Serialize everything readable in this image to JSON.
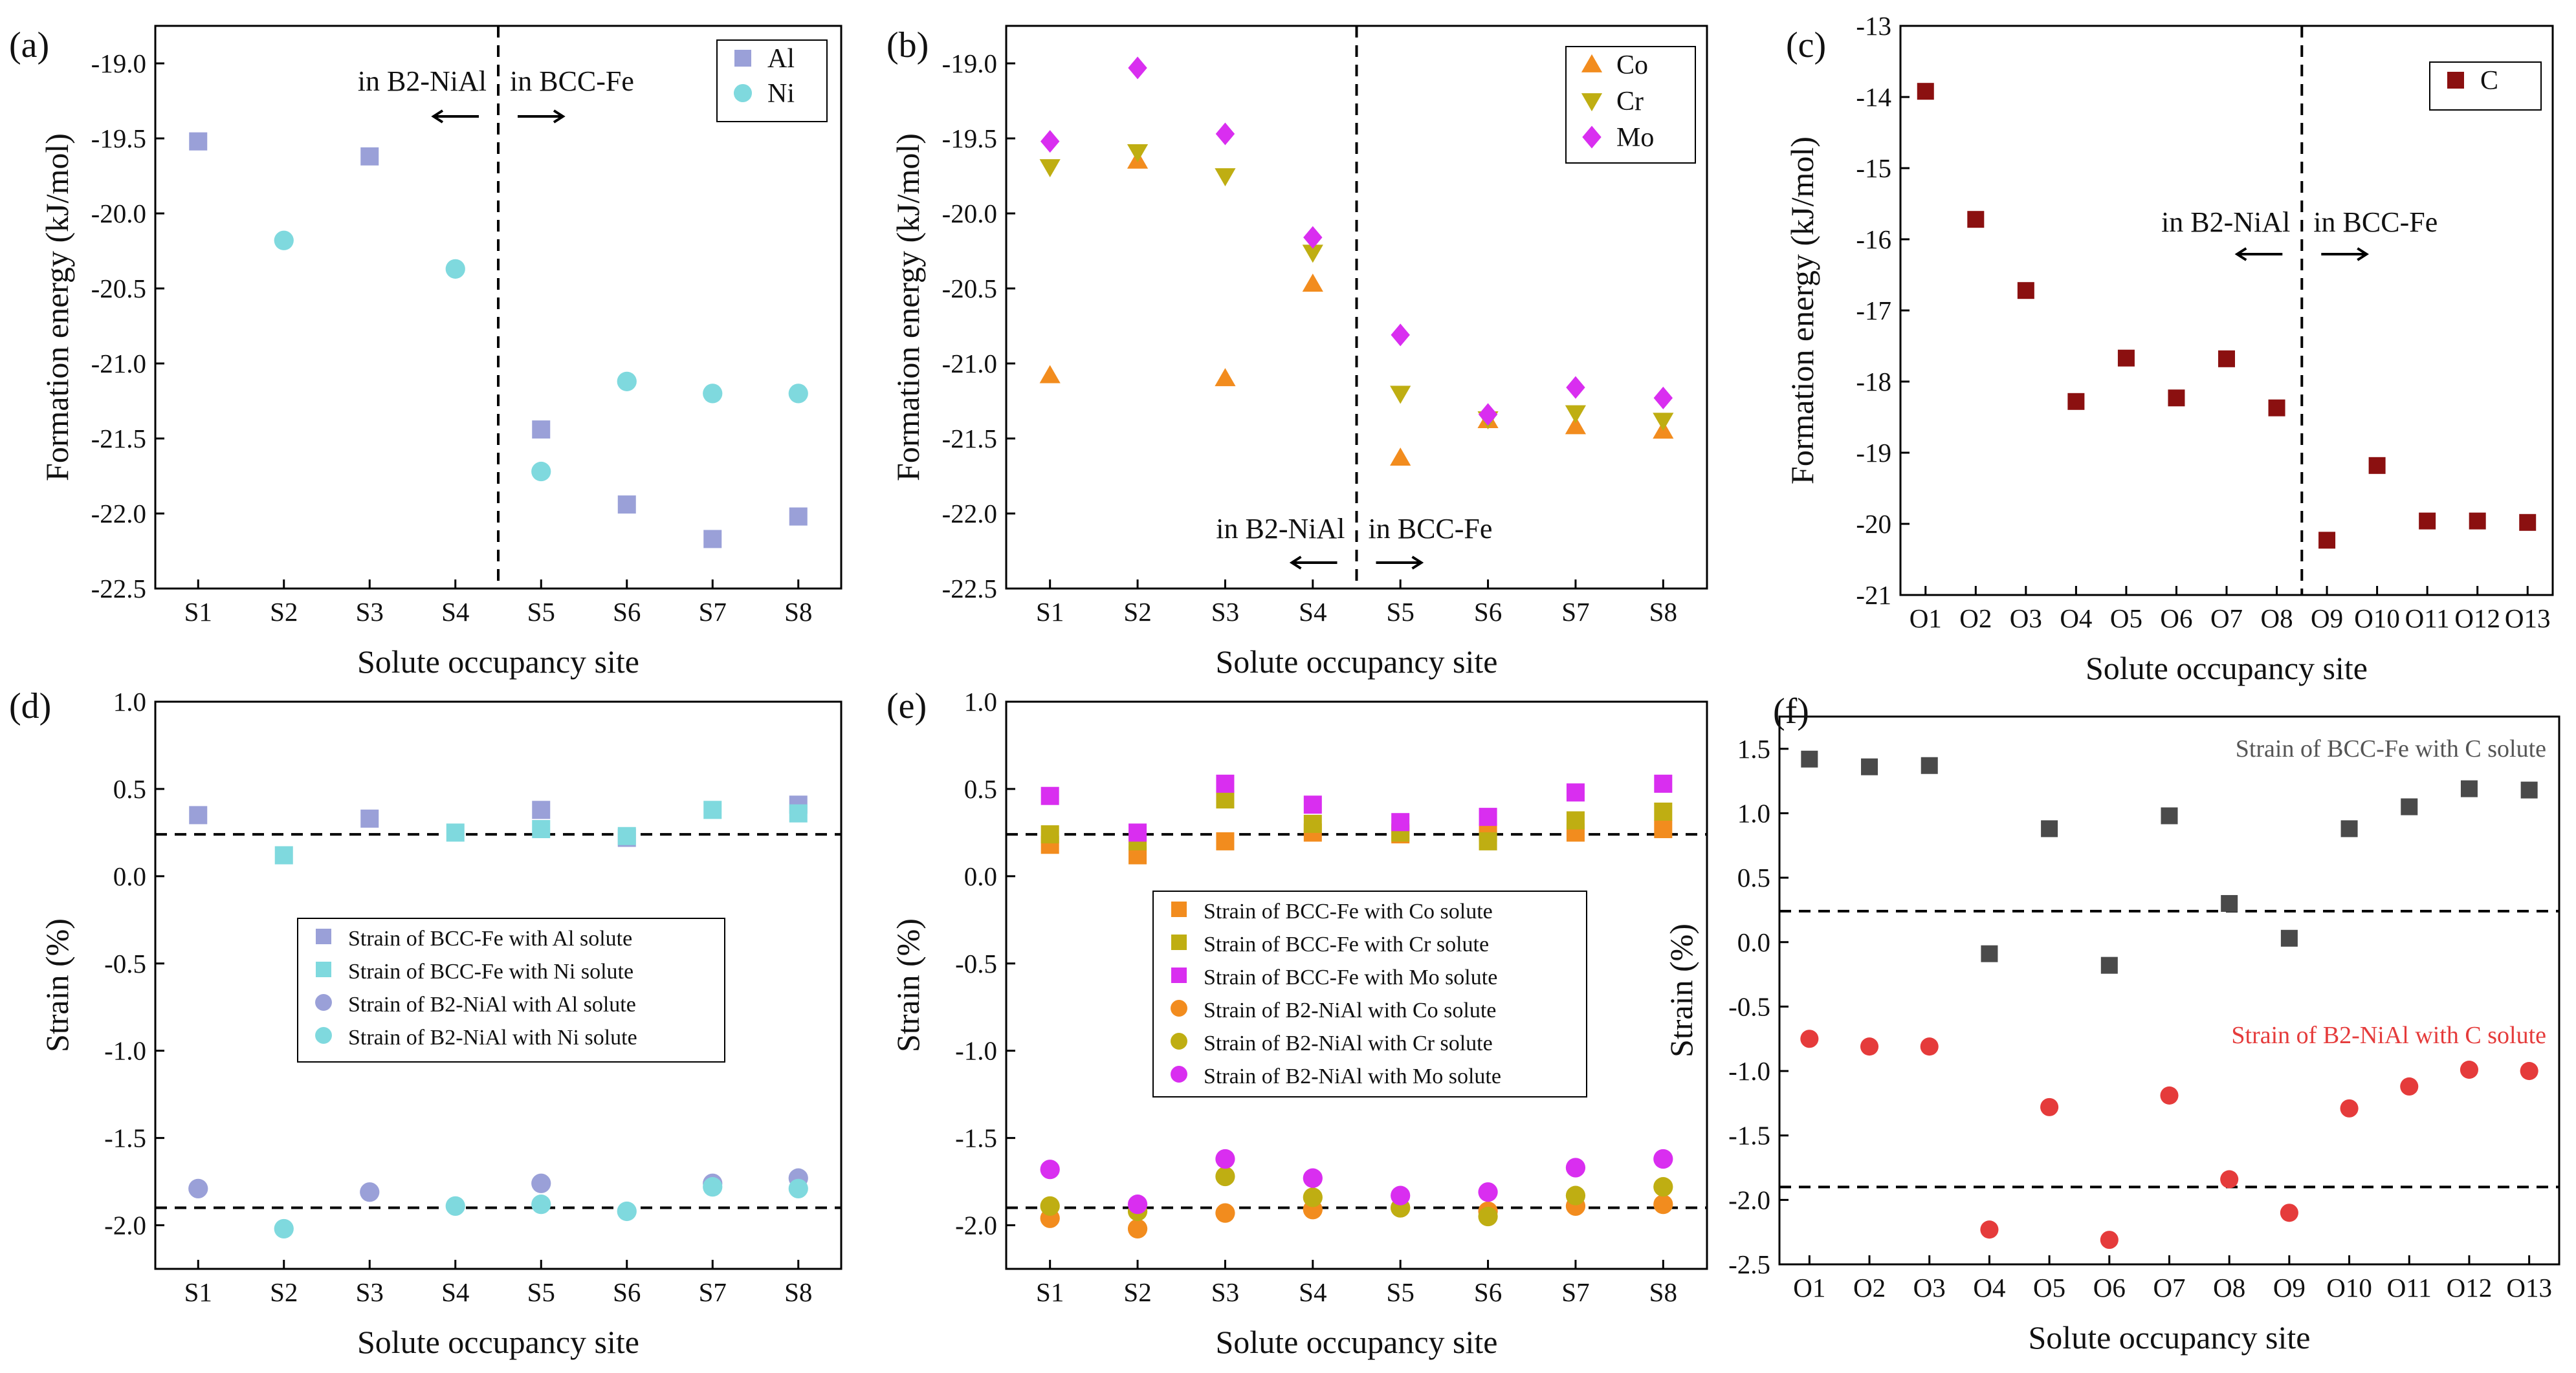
{
  "chart_data": [
    {
      "id": "a",
      "type": "scatter",
      "panel_label": "(a)",
      "xlabel": "Solute occupancy site",
      "ylabel": "Formation energy (kJ/mol)",
      "categories": [
        "S1",
        "S2",
        "S3",
        "S4",
        "S5",
        "S6",
        "S7",
        "S8"
      ],
      "ylim": [
        -22.5,
        -18.75
      ],
      "yticks": [
        -22.5,
        -22.0,
        -21.5,
        -21.0,
        -20.5,
        -20.0,
        -19.5,
        -19.0
      ],
      "ytick_labels": [
        "-22.5",
        "-22.0",
        "-21.5",
        "-21.0",
        "-20.5",
        "-20.0",
        "-19.5",
        "-19.0"
      ],
      "series": [
        {
          "name": "Al",
          "marker": "square",
          "color": "#9aa0d8",
          "values": [
            -19.52,
            null,
            -19.62,
            null,
            -21.44,
            -21.94,
            -22.17,
            -22.02
          ]
        },
        {
          "name": "Ni",
          "marker": "circle",
          "color": "#7fd9de",
          "values": [
            null,
            -20.18,
            null,
            -20.37,
            -21.72,
            -21.12,
            -21.2,
            -21.2
          ]
        }
      ],
      "divider_after_index": 3,
      "legend_position": "top-right",
      "annotations": {
        "left": "in B2-NiAl",
        "right": "in BCC-Fe",
        "placement": "top"
      }
    },
    {
      "id": "b",
      "type": "scatter",
      "panel_label": "(b)",
      "xlabel": "Solute occupancy site",
      "ylabel": "Formation energy (kJ/mol)",
      "categories": [
        "S1",
        "S2",
        "S3",
        "S4",
        "S5",
        "S6",
        "S7",
        "S8"
      ],
      "ylim": [
        -22.5,
        -18.75
      ],
      "yticks": [
        -22.5,
        -22.0,
        -21.5,
        -21.0,
        -20.5,
        -20.0,
        -19.5,
        -19.0
      ],
      "ytick_labels": [
        "-22.5",
        "-22.0",
        "-21.5",
        "-21.0",
        "-20.5",
        "-20.0",
        "-19.5",
        "-19.0"
      ],
      "series": [
        {
          "name": "Co",
          "marker": "triangle-up",
          "color": "#f28c1e",
          "values": [
            -21.08,
            -19.65,
            -21.1,
            -20.47,
            -21.63,
            -21.38,
            -21.42,
            -21.45
          ]
        },
        {
          "name": "Cr",
          "marker": "triangle-down",
          "color": "#bfae12",
          "values": [
            -19.69,
            -19.59,
            -19.75,
            -20.26,
            -21.2,
            -21.37,
            -21.33,
            -21.38
          ]
        },
        {
          "name": "Mo",
          "marker": "diamond",
          "color": "#d92ef0",
          "values": [
            -19.52,
            -19.03,
            -19.47,
            -20.16,
            -20.81,
            -21.34,
            -21.16,
            -21.23
          ]
        }
      ],
      "divider_after_index": 3,
      "legend_position": "top-right",
      "annotations": {
        "left": "in B2-NiAl",
        "right": "in BCC-Fe",
        "placement": "bottom"
      }
    },
    {
      "id": "c",
      "type": "scatter",
      "panel_label": "(c)",
      "xlabel": "Solute occupancy site",
      "ylabel": "Formation energy (kJ/mol)",
      "categories": [
        "O1",
        "O2",
        "O3",
        "O4",
        "O5",
        "O6",
        "O7",
        "O8",
        "O9",
        "O10",
        "O11",
        "O12",
        "O13"
      ],
      "ylim": [
        -21,
        -13
      ],
      "yticks": [
        -21,
        -20,
        -19,
        -18,
        -17,
        -16,
        -15,
        -14,
        -13
      ],
      "ytick_labels": [
        "-21",
        "-20",
        "-19",
        "-18",
        "-17",
        "-16",
        "-15",
        "-14",
        "-13"
      ],
      "series": [
        {
          "name": "C",
          "marker": "square",
          "color": "#8b1010",
          "values": [
            -13.92,
            -15.72,
            -16.72,
            -18.28,
            -17.67,
            -18.23,
            -17.68,
            -18.37,
            -20.23,
            -19.18,
            -19.96,
            -19.96,
            -19.98
          ]
        }
      ],
      "divider_after_index": 7,
      "legend_position": "top-right",
      "annotations": {
        "left": "in B2-NiAl",
        "right": "in BCC-Fe",
        "placement": "middle"
      }
    },
    {
      "id": "d",
      "type": "scatter",
      "panel_label": "(d)",
      "xlabel": "Solute occupancy site",
      "ylabel": "Strain (%)",
      "categories": [
        "S1",
        "S2",
        "S3",
        "S4",
        "S5",
        "S6",
        "S7",
        "S8"
      ],
      "ylim": [
        -2.25,
        1.0
      ],
      "yticks": [
        -2.0,
        -1.5,
        -1.0,
        -0.5,
        0.0,
        0.5,
        1.0
      ],
      "ytick_labels": [
        "-2.0",
        "-1.5",
        "-1.0",
        "-0.5",
        "0.0",
        "0.5",
        "1.0"
      ],
      "reference_lines": [
        0.24,
        -1.9
      ],
      "series": [
        {
          "name": "Strain of BCC-Fe with Al solute",
          "marker": "square",
          "color": "#9aa0d8",
          "values": [
            0.35,
            null,
            0.33,
            null,
            0.38,
            0.22,
            null,
            0.41
          ]
        },
        {
          "name": "Strain of BCC-Fe with Ni solute",
          "marker": "square",
          "color": "#7fd9de",
          "values": [
            null,
            0.12,
            null,
            0.25,
            0.27,
            0.23,
            0.38,
            0.36
          ]
        },
        {
          "name": "Strain of B2-NiAl with Al solute",
          "marker": "circle",
          "color": "#9aa0d8",
          "values": [
            -1.79,
            null,
            -1.81,
            null,
            -1.76,
            null,
            -1.76,
            -1.73
          ]
        },
        {
          "name": "Strain of B2-NiAl with Ni solute",
          "marker": "circle",
          "color": "#7fd9de",
          "values": [
            null,
            -2.02,
            null,
            -1.89,
            -1.88,
            -1.92,
            -1.78,
            -1.79
          ]
        }
      ],
      "legend_position": "center"
    },
    {
      "id": "e",
      "type": "scatter",
      "panel_label": "(e)",
      "xlabel": "Solute occupancy site",
      "ylabel": "Strain (%)",
      "categories": [
        "S1",
        "S2",
        "S3",
        "S4",
        "S5",
        "S6",
        "S7",
        "S8"
      ],
      "ylim": [
        -2.25,
        1.0
      ],
      "yticks": [
        -2.0,
        -1.5,
        -1.0,
        -0.5,
        0.0,
        0.5,
        1.0
      ],
      "ytick_labels": [
        "-2.0",
        "-1.5",
        "-1.0",
        "-0.5",
        "0.0",
        "0.5",
        "1.0"
      ],
      "reference_lines": [
        0.24,
        -1.9
      ],
      "series": [
        {
          "name": "Strain of BCC-Fe with Co solute",
          "marker": "square",
          "color": "#f28c1e",
          "values": [
            0.18,
            0.12,
            0.2,
            0.25,
            0.24,
            0.25,
            0.25,
            0.27
          ]
        },
        {
          "name": "Strain of BCC-Fe with Cr solute",
          "marker": "square",
          "color": "#bfae12",
          "values": [
            0.24,
            0.2,
            0.44,
            0.3,
            0.25,
            0.2,
            0.32,
            0.37
          ]
        },
        {
          "name": "Strain of BCC-Fe with Mo solute",
          "marker": "square",
          "color": "#d92ef0",
          "values": [
            0.46,
            0.25,
            0.53,
            0.41,
            0.31,
            0.34,
            0.48,
            0.53
          ]
        },
        {
          "name": "Strain of B2-NiAl with Co solute",
          "marker": "circle",
          "color": "#f28c1e",
          "values": [
            -1.96,
            -2.02,
            -1.93,
            -1.91,
            -1.9,
            -1.92,
            -1.89,
            -1.88
          ]
        },
        {
          "name": "Strain of B2-NiAl with Cr solute",
          "marker": "circle",
          "color": "#bfae12",
          "values": [
            -1.89,
            -1.92,
            -1.72,
            -1.84,
            -1.9,
            -1.95,
            -1.83,
            -1.78
          ]
        },
        {
          "name": "Strain of B2-NiAl with Mo solute",
          "marker": "circle",
          "color": "#d92ef0",
          "values": [
            -1.68,
            -1.88,
            -1.62,
            -1.73,
            -1.83,
            -1.81,
            -1.67,
            -1.62
          ]
        }
      ],
      "legend_position": "center"
    },
    {
      "id": "f",
      "type": "scatter",
      "panel_label": "(f)",
      "xlabel": "Solute occupancy site",
      "ylabel": "Strain (%)",
      "categories": [
        "O1",
        "O2",
        "O3",
        "O4",
        "O5",
        "O6",
        "O7",
        "O8",
        "O9",
        "O10",
        "O11",
        "O12",
        "O13"
      ],
      "ylim": [
        -2.5,
        1.75
      ],
      "yticks": [
        -2.5,
        -2.0,
        -1.5,
        -1.0,
        -0.5,
        0.0,
        0.5,
        1.0,
        1.5
      ],
      "ytick_labels": [
        "-2.5",
        "-2.0",
        "-1.5",
        "-1.0",
        "-0.5",
        "0.0",
        "0.5",
        "1.0",
        "1.5"
      ],
      "reference_lines": [
        0.24,
        -1.9
      ],
      "series": [
        {
          "name": "Strain of BCC-Fe with C solute",
          "marker": "square",
          "color": "#4a4a4a",
          "values": [
            1.42,
            1.36,
            1.37,
            -0.09,
            0.88,
            -0.18,
            0.98,
            0.3,
            0.03,
            0.88,
            1.05,
            1.19,
            1.18
          ]
        },
        {
          "name": "Strain of B2-NiAl with C solute",
          "marker": "circle",
          "color": "#e53b3b",
          "values": [
            -0.75,
            -0.81,
            -0.81,
            -2.23,
            -1.28,
            -2.31,
            -1.19,
            -1.84,
            -2.1,
            -1.29,
            -1.12,
            -0.99,
            -1.0
          ]
        }
      ],
      "legend_position": "inline-text"
    }
  ]
}
